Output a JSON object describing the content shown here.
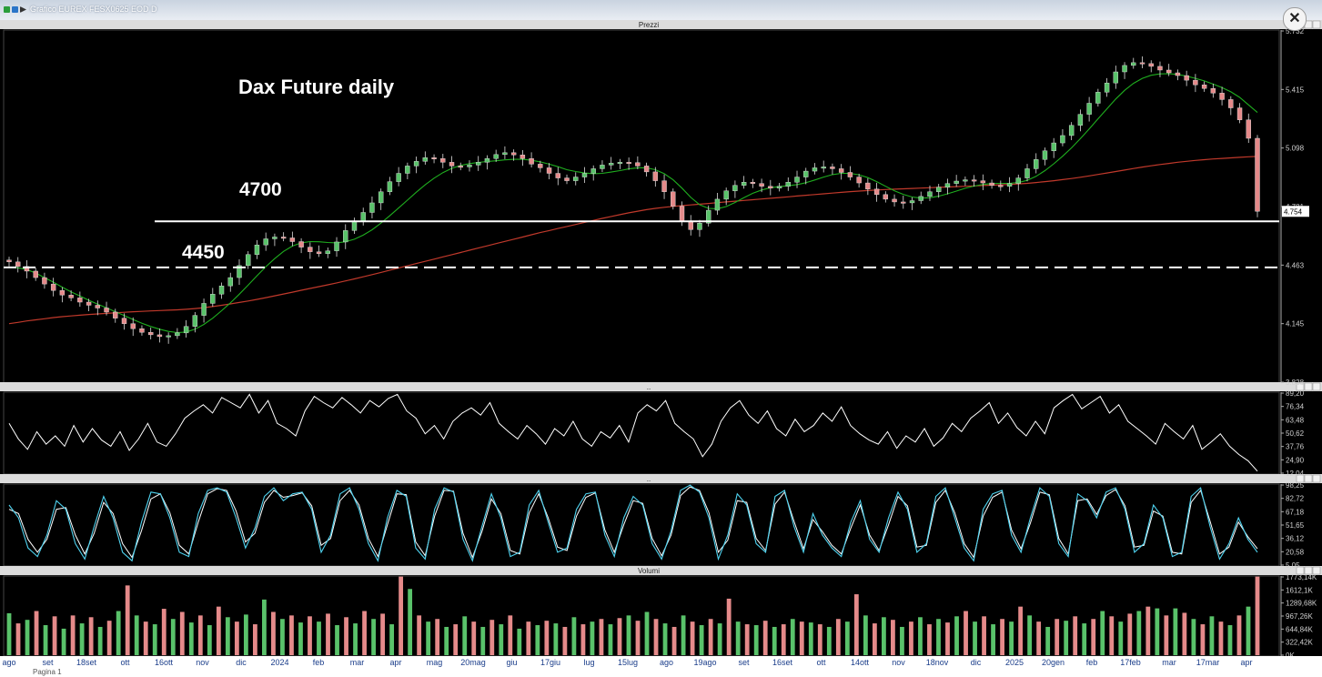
{
  "window": {
    "title": "Grafico EUREX FESX0625 EOD D",
    "footer_text": "Pagina 1"
  },
  "panels": {
    "price_header": "Prezzi",
    "rsi_header": "..",
    "stoch_header": "..",
    "volume_header": "Volumi"
  },
  "annotations": {
    "chart_title": "Dax Future daily",
    "level_high_label": "4700",
    "level_low_label": "4450"
  },
  "colors": {
    "background": "#000000",
    "candle_up": "#59c26a",
    "candle_down": "#e58a8a",
    "ma_short": "#1fae1f",
    "ma_long": "#c0392b",
    "rsi_line": "#ffffff",
    "stoch_fast": "#4fd3f0",
    "stoch_slow": "#ffffff",
    "level_line": "#ffffff"
  },
  "chart_data": [
    {
      "type": "candlestick",
      "panel": "Prezzi",
      "title": "Dax Future daily",
      "yticks": [
        "5.732",
        "5.415",
        "5.098",
        "4.781",
        "4.463",
        "4.145",
        "3.828"
      ],
      "ylim": [
        3828,
        5732
      ],
      "last_price_label": "4.754",
      "xticks": [
        "ago",
        "set",
        "18set",
        "ott",
        "16ott",
        "nov",
        "dic",
        "2024",
        "feb",
        "mar",
        "apr",
        "mag",
        "20mag",
        "giu",
        "17giu",
        "lug",
        "15lug",
        "ago",
        "19ago",
        "set",
        "16set",
        "ott",
        "14ott",
        "nov",
        "18nov",
        "dic",
        "2025",
        "20gen",
        "feb",
        "17feb",
        "mar",
        "17mar",
        "apr"
      ],
      "horizontal_levels": [
        {
          "label": "4700",
          "value": 4700,
          "style": "solid"
        },
        {
          "label": "4450",
          "value": 4450,
          "style": "dashed"
        }
      ],
      "close_series": [
        4480,
        4455,
        4430,
        4395,
        4360,
        4325,
        4300,
        4285,
        4262,
        4245,
        4230,
        4208,
        4175,
        4145,
        4118,
        4098,
        4085,
        4075,
        4080,
        4095,
        4130,
        4190,
        4255,
        4305,
        4350,
        4395,
        4460,
        4520,
        4572,
        4605,
        4615,
        4610,
        4590,
        4560,
        4535,
        4525,
        4540,
        4588,
        4650,
        4702,
        4748,
        4800,
        4860,
        4915,
        4960,
        5000,
        5025,
        5045,
        5040,
        5020,
        5000,
        4995,
        5005,
        5020,
        5040,
        5062,
        5072,
        5060,
        5040,
        5010,
        4990,
        4960,
        4935,
        4920,
        4940,
        4960,
        4985,
        5005,
        5015,
        5020,
        5018,
        5000,
        4968,
        4920,
        4860,
        4782,
        4700,
        4655,
        4690,
        4760,
        4820,
        4865,
        4895,
        4912,
        4905,
        4890,
        4880,
        4890,
        4912,
        4940,
        4972,
        4990,
        4995,
        4985,
        4965,
        4940,
        4908,
        4875,
        4845,
        4820,
        4805,
        4800,
        4812,
        4835,
        4860,
        4885,
        4905,
        4918,
        4925,
        4920,
        4908,
        4895,
        4890,
        4905,
        4935,
        4985,
        5035,
        5082,
        5125,
        5165,
        5220,
        5280,
        5340,
        5400,
        5450,
        5510,
        5545,
        5560,
        5555,
        5540,
        5520,
        5505,
        5490,
        5465,
        5440,
        5420,
        5395,
        5360,
        5315,
        5250,
        5150,
        4754
      ],
      "ma_short": [
        4450,
        4448,
        4438,
        4420,
        4395,
        4370,
        4343,
        4318,
        4295,
        4272,
        4251,
        4231,
        4210,
        4189,
        4168,
        4147,
        4130,
        4115,
        4103,
        4097,
        4100,
        4115,
        4141,
        4175,
        4215,
        4258,
        4305,
        4354,
        4405,
        4454,
        4498,
        4537,
        4566,
        4583,
        4590,
        4589,
        4585,
        4583,
        4589,
        4603,
        4625,
        4654,
        4690,
        4730,
        4772,
        4815,
        4858,
        4898,
        4934,
        4964,
        4987,
        5003,
        5013,
        5019,
        5024,
        5028,
        5033,
        5036,
        5036,
        5031,
        5022,
        5010,
        4996,
        4980,
        4970,
        4962,
        4958,
        4960,
        4967,
        4975,
        4984,
        4990,
        4990,
        4980,
        4958,
        4925,
        4880,
        4830,
        4790,
        4770,
        4768,
        4780,
        4802,
        4828,
        4852,
        4870,
        4882,
        4888,
        4893,
        4899,
        4909,
        4924,
        4940,
        4953,
        4960,
        4960,
        4952,
        4937,
        4915,
        4890,
        4866,
        4846,
        4832,
        4826,
        4828,
        4836,
        4849,
        4864,
        4879,
        4891,
        4900,
        4905,
        4906,
        4906,
        4910,
        4922,
        4944,
        4975,
        5012,
        5053,
        5098,
        5148,
        5201,
        5256,
        5310,
        5363,
        5410,
        5448,
        5475,
        5492,
        5499,
        5500,
        5496,
        5487,
        5475,
        5461,
        5444,
        5425,
        5402,
        5372,
        5331,
        5290
      ],
      "ma_long": [
        4145,
        4152,
        4160,
        4166,
        4172,
        4178,
        4183,
        4187,
        4191,
        4195,
        4198,
        4201,
        4204,
        4207,
        4210,
        4212,
        4214,
        4216,
        4218,
        4220,
        4223,
        4227,
        4232,
        4238,
        4245,
        4252,
        4260,
        4268,
        4277,
        4286,
        4296,
        4306,
        4316,
        4326,
        4336,
        4346,
        4356,
        4366,
        4377,
        4388,
        4399,
        4411,
        4423,
        4435,
        4447,
        4459,
        4471,
        4483,
        4495,
        4507,
        4519,
        4531,
        4543,
        4555,
        4567,
        4579,
        4591,
        4603,
        4615,
        4627,
        4639,
        4650,
        4661,
        4672,
        4683,
        4694,
        4705,
        4716,
        4726,
        4736,
        4746,
        4755,
        4763,
        4770,
        4776,
        4781,
        4785,
        4789,
        4793,
        4797,
        4801,
        4805,
        4809,
        4813,
        4817,
        4821,
        4825,
        4829,
        4833,
        4837,
        4841,
        4845,
        4849,
        4853,
        4857,
        4861,
        4864,
        4867,
        4870,
        4872,
        4874,
        4876,
        4878,
        4880,
        4882,
        4884,
        4886,
        4888,
        4890,
        4892,
        4894,
        4896,
        4898,
        4900,
        4903,
        4906,
        4910,
        4915,
        4920,
        4926,
        4932,
        4939,
        4946,
        4954,
        4962,
        4970,
        4978,
        4986,
        4994,
        5001,
        5008,
        5014,
        5020,
        5025,
        5030,
        5034,
        5038,
        5041,
        5044,
        5047,
        5050,
        5052
      ]
    },
    {
      "type": "line",
      "panel": "RSI",
      "yticks": [
        "89,20",
        "76,34",
        "63,48",
        "50,62",
        "37,76",
        "24,90",
        "12,04"
      ],
      "ylim": [
        12.04,
        89.2
      ],
      "series": [
        {
          "values": [
            60,
            45,
            35,
            52,
            40,
            48,
            38,
            58,
            42,
            55,
            44,
            38,
            52,
            34,
            45,
            60,
            42,
            38,
            50,
            65,
            72,
            78,
            70,
            85,
            80,
            75,
            88,
            70,
            82,
            60,
            55,
            48,
            72,
            86,
            80,
            75,
            85,
            78,
            70,
            82,
            76,
            84,
            88,
            72,
            65,
            50,
            58,
            45,
            62,
            70,
            75,
            68,
            80,
            60,
            52,
            45,
            58,
            50,
            40,
            55,
            48,
            62,
            45,
            38,
            52,
            46,
            58,
            42,
            70,
            78,
            72,
            82,
            60,
            52,
            45,
            28,
            40,
            62,
            75,
            82,
            68,
            60,
            72,
            55,
            48,
            64,
            52,
            58,
            70,
            62,
            76,
            58,
            50,
            44,
            40,
            52,
            36,
            48,
            42,
            55,
            38,
            46,
            60,
            52,
            65,
            72,
            80,
            60,
            70,
            56,
            48,
            62,
            50,
            75,
            82,
            88,
            74,
            80,
            86,
            70,
            78,
            62,
            55,
            48,
            40,
            60,
            52,
            45,
            58,
            35,
            42,
            50,
            38,
            30,
            24,
            14
          ]
        }
      ]
    },
    {
      "type": "line",
      "panel": "Stochastic",
      "yticks": [
        "98,25",
        "82,72",
        "67,18",
        "51,65",
        "36,12",
        "20,58",
        "5,05"
      ],
      "ylim": [
        5.05,
        98.25
      ],
      "series": [
        {
          "values": [
            75,
            60,
            25,
            15,
            40,
            80,
            70,
            30,
            12,
            50,
            85,
            60,
            20,
            10,
            55,
            90,
            88,
            60,
            20,
            15,
            65,
            92,
            95,
            90,
            60,
            25,
            48,
            85,
            95,
            80,
            88,
            90,
            70,
            20,
            40,
            88,
            95,
            70,
            30,
            10,
            60,
            92,
            85,
            25,
            12,
            70,
            95,
            90,
            35,
            10,
            50,
            88,
            60,
            15,
            20,
            75,
            92,
            55,
            20,
            25,
            70,
            88,
            90,
            40,
            15,
            60,
            85,
            75,
            30,
            12,
            45,
            92,
            98,
            90,
            60,
            12,
            40,
            88,
            75,
            30,
            20,
            85,
            92,
            50,
            20,
            65,
            40,
            25,
            15,
            55,
            80,
            35,
            20,
            60,
            90,
            70,
            20,
            30,
            85,
            95,
            60,
            25,
            10,
            70,
            88,
            92,
            40,
            20,
            60,
            95,
            85,
            30,
            15,
            88,
            80,
            60,
            90,
            95,
            70,
            20,
            30,
            75,
            60,
            15,
            20,
            85,
            95,
            50,
            12,
            30,
            60,
            35,
            20
          ]
        },
        {
          "values": [
            70,
            65,
            35,
            20,
            35,
            70,
            72,
            40,
            18,
            42,
            78,
            65,
            30,
            14,
            45,
            82,
            88,
            66,
            28,
            18,
            55,
            88,
            94,
            92,
            68,
            32,
            42,
            78,
            92,
            84,
            86,
            89,
            74,
            28,
            36,
            80,
            92,
            75,
            36,
            15,
            52,
            88,
            87,
            32,
            16,
            62,
            92,
            91,
            42,
            14,
            44,
            82,
            65,
            22,
            18,
            66,
            88,
            60,
            26,
            22,
            62,
            84,
            89,
            46,
            20,
            52,
            80,
            77,
            36,
            16,
            40,
            86,
            96,
            92,
            66,
            20,
            34,
            80,
            78,
            36,
            22,
            76,
            90,
            56,
            24,
            58,
            44,
            28,
            18,
            48,
            75,
            40,
            22,
            52,
            85,
            74,
            26,
            28,
            78,
            92,
            66,
            30,
            14,
            62,
            84,
            90,
            46,
            24,
            54,
            90,
            87,
            36,
            18,
            80,
            82,
            64,
            86,
            93,
            74,
            26,
            28,
            68,
            62,
            20,
            18,
            78,
            92,
            56,
            18,
            26,
            55,
            38,
            24
          ]
        }
      ]
    },
    {
      "type": "bar",
      "panel": "Volumi",
      "yticks": [
        "1773,14K",
        "1612,1K",
        "1289,68K",
        "967,26K",
        "644,84K",
        "322,42K",
        "0K"
      ],
      "ylim": [
        0,
        1773.14
      ],
      "values": [
        950,
        720,
        800,
        1000,
        680,
        880,
        600,
        900,
        720,
        860,
        640,
        780,
        1000,
        1580,
        900,
        760,
        700,
        1050,
        820,
        980,
        740,
        900,
        680,
        1100,
        860,
        760,
        920,
        700,
        1260,
        980,
        820,
        900,
        740,
        880,
        760,
        940,
        680,
        860,
        720,
        1000,
        820,
        940,
        700,
        1780,
        1500,
        900,
        760,
        820,
        640,
        700,
        880,
        760,
        640,
        800,
        700,
        900,
        600,
        760,
        680,
        780,
        720,
        640,
        860,
        700,
        760,
        820,
        700,
        840,
        900,
        780,
        980,
        820,
        720,
        640,
        900,
        760,
        680,
        820,
        720,
        1280,
        760,
        700,
        680,
        780,
        640,
        700,
        820,
        760,
        740,
        700,
        640,
        820,
        760,
        1380,
        900,
        720,
        860,
        800,
        640,
        760,
        860,
        700,
        820,
        740,
        880,
        1000,
        760,
        880,
        700,
        820,
        760,
        1100,
        900,
        760,
        640,
        820,
        780,
        880,
        720,
        820,
        1000,
        880,
        760,
        940,
        1000,
        1100,
        1060,
        900,
        1060,
        960,
        820,
        700,
        880,
        760,
        680,
        900,
        1100,
        1780
      ]
    }
  ]
}
